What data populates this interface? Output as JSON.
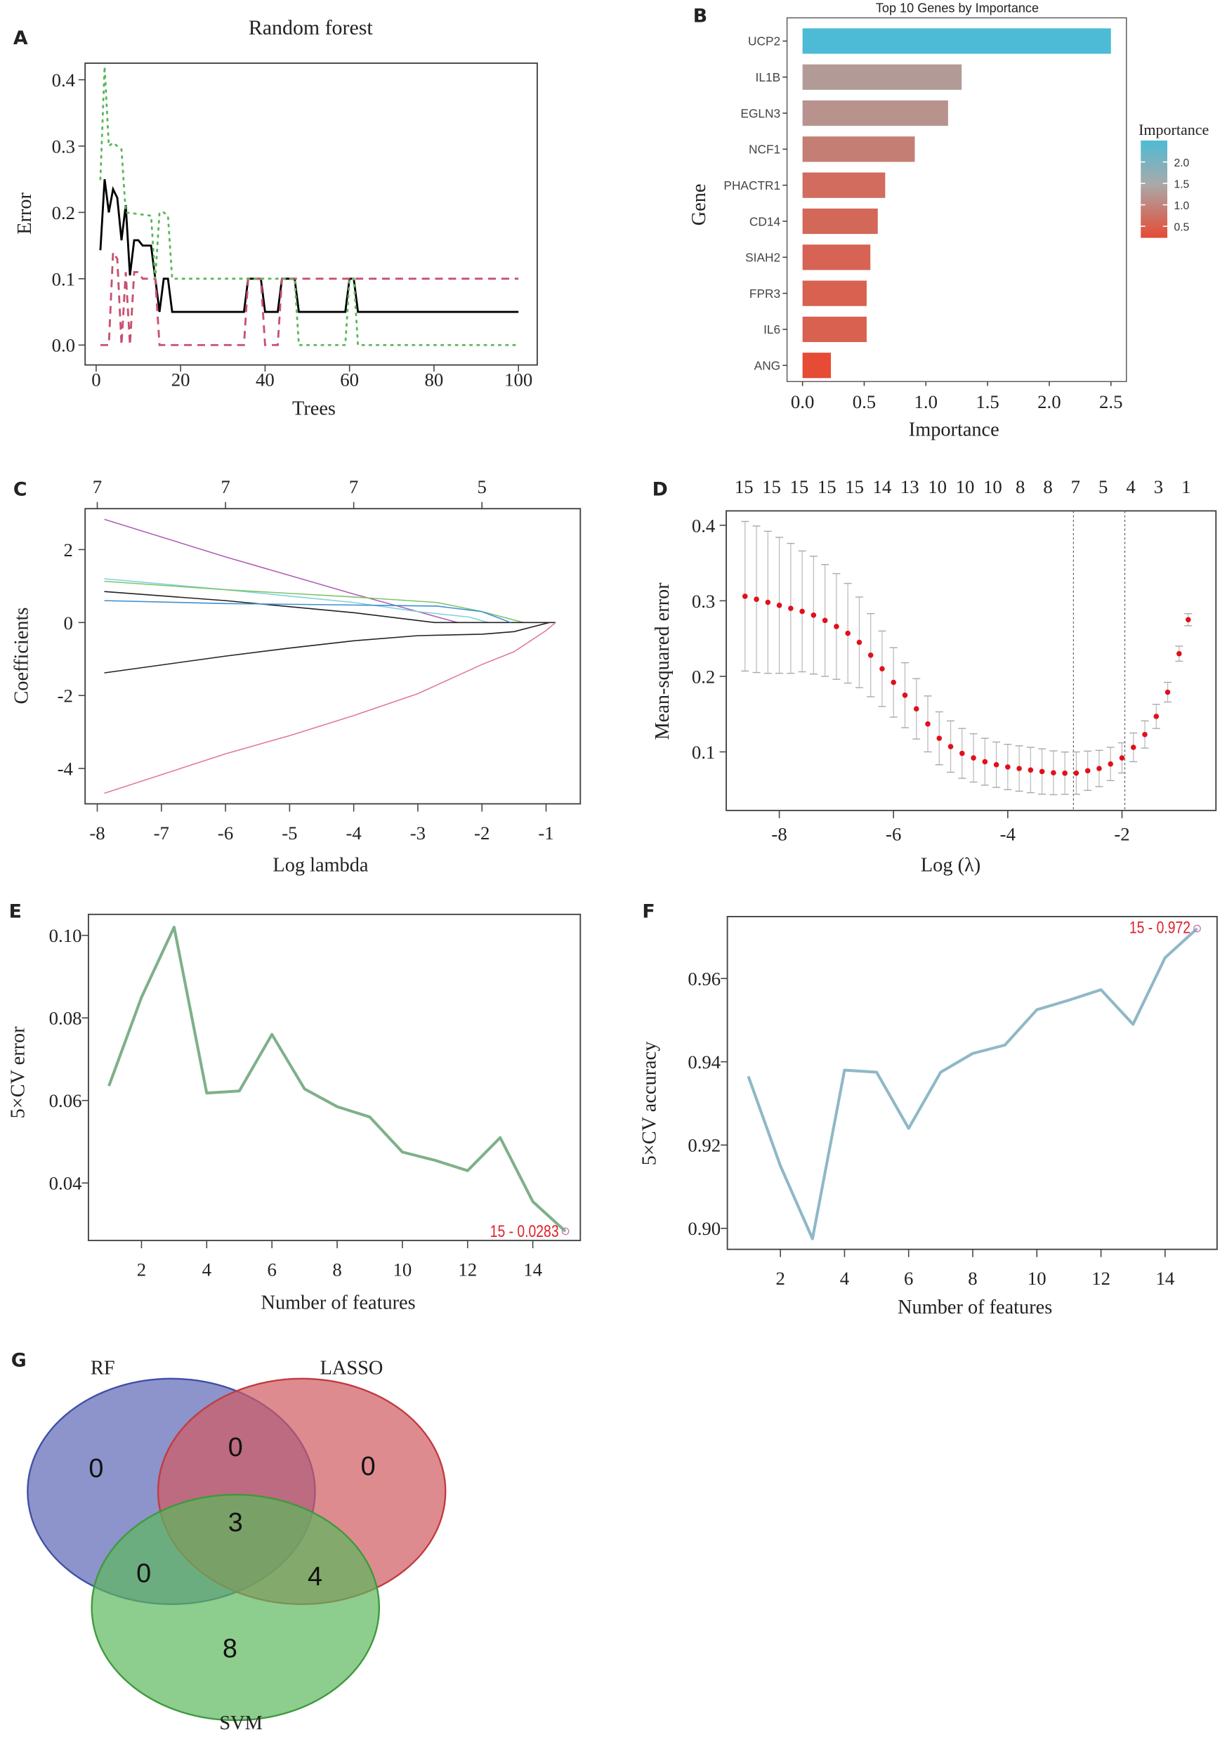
{
  "panels": {
    "A": "A",
    "B": "B",
    "C": "C",
    "D": "D",
    "E": "E",
    "F": "F",
    "G": "G"
  },
  "chart_data": [
    {
      "panel": "A",
      "type": "line",
      "title": "Random forest",
      "xlabel": "Trees",
      "ylabel": "Error",
      "xlim": [
        0,
        100
      ],
      "ylim": [
        0,
        0.43
      ],
      "xticks": [
        0,
        20,
        40,
        60,
        80,
        100
      ],
      "yticks": [
        "0.0",
        "0.1",
        "0.2",
        "0.3",
        "0.4"
      ],
      "series": [
        {
          "style": "solid",
          "color": "#000000",
          "points": [
            [
              1,
              0.143
            ],
            [
              2,
              0.25
            ],
            [
              3,
              0.2
            ],
            [
              4,
              0.235
            ],
            [
              5,
              0.222
            ],
            [
              6,
              0.158
            ],
            [
              7,
              0.211
            ],
            [
              8,
              0.105
            ],
            [
              9,
              0.158
            ],
            [
              10,
              0.158
            ],
            [
              11,
              0.15
            ],
            [
              13,
              0.15
            ],
            [
              15,
              0.05
            ],
            [
              16,
              0.1
            ],
            [
              17,
              0.1
            ],
            [
              18,
              0.05
            ],
            [
              35,
              0.05
            ],
            [
              36,
              0.1
            ],
            [
              39,
              0.1
            ],
            [
              40,
              0.05
            ],
            [
              43,
              0.05
            ],
            [
              44,
              0.1
            ],
            [
              47,
              0.1
            ],
            [
              48,
              0.05
            ],
            [
              59,
              0.05
            ],
            [
              60,
              0.1
            ],
            [
              61,
              0.1
            ],
            [
              62,
              0.05
            ],
            [
              100,
              0.05
            ]
          ]
        },
        {
          "style": "dashed",
          "color": "#c8506e",
          "points": [
            [
              1,
              0
            ],
            [
              3,
              0
            ],
            [
              4,
              0.14
            ],
            [
              5,
              0.13
            ],
            [
              6,
              0
            ],
            [
              7,
              0.11
            ],
            [
              8,
              0
            ],
            [
              9,
              0.11
            ],
            [
              10,
              0.11
            ],
            [
              11,
              0.1
            ],
            [
              14,
              0.1
            ],
            [
              15,
              0
            ],
            [
              35,
              0
            ],
            [
              36,
              0.1
            ],
            [
              39,
              0.1
            ],
            [
              40,
              0
            ],
            [
              43,
              0
            ],
            [
              44,
              0.1
            ],
            [
              100,
              0.1
            ]
          ]
        },
        {
          "style": "dotted",
          "color": "#5cb85c",
          "points": [
            [
              1,
              0.25
            ],
            [
              2,
              0.42
            ],
            [
              3,
              0.3
            ],
            [
              4,
              0.305
            ],
            [
              6,
              0.295
            ],
            [
              7,
              0.2
            ],
            [
              13,
              0.195
            ],
            [
              14,
              0.1
            ],
            [
              15,
              0.2
            ],
            [
              16,
              0.2
            ],
            [
              17,
              0.195
            ],
            [
              18,
              0.1
            ],
            [
              47,
              0.1
            ],
            [
              48,
              0
            ],
            [
              59,
              0
            ],
            [
              60,
              0.1
            ],
            [
              61,
              0.1
            ],
            [
              62,
              0
            ],
            [
              100,
              0
            ]
          ]
        }
      ]
    },
    {
      "panel": "B",
      "type": "bar",
      "orientation": "horizontal",
      "title": "Top 10 Genes by Importance",
      "xlabel": "Importance",
      "ylabel": "Gene",
      "xlim": [
        0,
        2.6
      ],
      "xticks": [
        "0.0",
        "0.5",
        "1.0",
        "1.5",
        "2.0",
        "2.5"
      ],
      "categories": [
        "UCP2",
        "IL1B",
        "EGLN3",
        "NCF1",
        "PHACTR1",
        "CD14",
        "SIAH2",
        "FPR3",
        "IL6",
        "ANG"
      ],
      "values": [
        2.5,
        1.29,
        1.18,
        0.91,
        0.67,
        0.61,
        0.55,
        0.52,
        0.52,
        0.23
      ],
      "legend": {
        "title": "Importance",
        "ticks": [
          "2.0",
          "1.5",
          "1.0",
          "0.5"
        ],
        "position": "right",
        "low_color": "#e64b35",
        "mid_color": "#a9a9a9",
        "high_color": "#4dbbd5"
      }
    },
    {
      "panel": "C",
      "type": "line",
      "xlabel": "Log lambda",
      "ylabel": "Coefficients",
      "xlim": [
        -8.2,
        -0.6
      ],
      "ylim": [
        -4.96,
        3.13
      ],
      "xticks": [
        -8,
        -7,
        -6,
        -5,
        -4,
        -3,
        -2,
        -1
      ],
      "yticks": [
        2,
        0,
        -2,
        -4
      ],
      "top_ticks": {
        "at": [
          -8,
          -6,
          -4,
          -2
        ],
        "labels": [
          "7",
          "7",
          "7",
          "5"
        ]
      },
      "series": [
        {
          "color": "#b05fb5",
          "points": [
            [
              -7.89,
              2.83
            ],
            [
              -6,
              1.8
            ],
            [
              -4,
              0.78
            ],
            [
              -2.38,
              0
            ]
          ]
        },
        {
          "color": "#7fd0e0",
          "points": [
            [
              -7.89,
              1.2
            ],
            [
              -6,
              0.9
            ],
            [
              -4,
              0.55
            ],
            [
              -3,
              0.3
            ],
            [
              -2.2,
              0.15
            ],
            [
              -1.9,
              0
            ]
          ]
        },
        {
          "color": "#7cc46a",
          "points": [
            [
              -7.89,
              1.13
            ],
            [
              -6,
              0.9
            ],
            [
              -4,
              0.7
            ],
            [
              -2.7,
              0.55
            ],
            [
              -2,
              0.3
            ],
            [
              -1.35,
              0
            ]
          ]
        },
        {
          "color": "#222222",
          "points": [
            [
              -7.89,
              0.85
            ],
            [
              -6,
              0.6
            ],
            [
              -4,
              0.27
            ],
            [
              -2.74,
              0
            ],
            [
              -0.85,
              0
            ]
          ]
        },
        {
          "color": "#3e8fd0",
          "points": [
            [
              -7.89,
              0.6
            ],
            [
              -6,
              0.52
            ],
            [
              -4,
              0.48
            ],
            [
              -2.7,
              0.45
            ],
            [
              -2,
              0.3
            ],
            [
              -1.55,
              0
            ]
          ]
        },
        {
          "color": "#222222",
          "points": [
            [
              -7.89,
              -1.38
            ],
            [
              -6,
              -0.92
            ],
            [
              -5,
              -0.7
            ],
            [
              -4,
              -0.5
            ],
            [
              -3,
              -0.36
            ],
            [
              -2,
              -0.32
            ],
            [
              -1.5,
              -0.25
            ],
            [
              -0.95,
              0
            ]
          ]
        },
        {
          "color": "#e07a9a",
          "points": [
            [
              -7.89,
              -4.68
            ],
            [
              -6,
              -3.6
            ],
            [
              -5,
              -3.1
            ],
            [
              -4,
              -2.55
            ],
            [
              -3,
              -1.95
            ],
            [
              -2,
              -1.15
            ],
            [
              -1.5,
              -0.8
            ],
            [
              -1,
              -0.22
            ],
            [
              -0.85,
              0
            ]
          ]
        }
      ]
    },
    {
      "panel": "D",
      "type": "scatter",
      "xlabel": "Log (λ)",
      "ylabel": "Mean-squared error",
      "xlim": [
        -9.6,
        -0.5
      ],
      "ylim": [
        0.042,
        0.42
      ],
      "xticks": [
        -8,
        -6,
        -4,
        -2
      ],
      "yticks": [
        "0.1",
        "0.2",
        "0.3",
        "0.4"
      ],
      "top_labels": [
        "15",
        "15",
        "15",
        "15",
        "15",
        "14",
        "13",
        "10",
        "10",
        "10",
        "8",
        "8",
        "7",
        "5",
        "4",
        "3",
        "1"
      ],
      "vlines": [
        -2.85,
        -1.95
      ],
      "x": [
        -8.6,
        -8.4,
        -8.2,
        -8.0,
        -7.8,
        -7.6,
        -7.4,
        -7.2,
        -7.0,
        -6.8,
        -6.6,
        -6.4,
        -6.2,
        -6.0,
        -5.8,
        -5.6,
        -5.4,
        -5.2,
        -5.0,
        -4.8,
        -4.6,
        -4.4,
        -4.2,
        -4.0,
        -3.8,
        -3.6,
        -3.4,
        -3.2,
        -3.0,
        -2.8,
        -2.6,
        -2.4,
        -2.2,
        -2.0,
        -1.8,
        -1.6,
        -1.4,
        -1.2,
        -1.0,
        -0.84
      ],
      "mse": [
        0.306,
        0.302,
        0.298,
        0.294,
        0.29,
        0.286,
        0.281,
        0.274,
        0.266,
        0.257,
        0.245,
        0.228,
        0.21,
        0.192,
        0.175,
        0.157,
        0.137,
        0.118,
        0.107,
        0.098,
        0.092,
        0.087,
        0.083,
        0.08,
        0.078,
        0.076,
        0.074,
        0.0723,
        0.0718,
        0.0719,
        0.075,
        0.078,
        0.084,
        0.092,
        0.106,
        0.123,
        0.147,
        0.179,
        0.23,
        0.275
      ],
      "se": [
        0.099,
        0.097,
        0.094,
        0.09,
        0.086,
        0.08,
        0.078,
        0.074,
        0.07,
        0.066,
        0.06,
        0.055,
        0.05,
        0.046,
        0.043,
        0.04,
        0.037,
        0.035,
        0.034,
        0.033,
        0.032,
        0.031,
        0.03,
        0.03,
        0.03,
        0.03,
        0.03,
        0.029,
        0.028,
        0.028,
        0.026,
        0.024,
        0.022,
        0.02,
        0.019,
        0.018,
        0.016,
        0.013,
        0.01,
        0.008
      ]
    },
    {
      "panel": "E",
      "type": "line",
      "xlabel": "Number of features",
      "ylabel": "5×CV error",
      "xlim": [
        0.2,
        15.6
      ],
      "ylim": [
        0.0255,
        0.1055
      ],
      "xticks": [
        2,
        4,
        6,
        8,
        10,
        12,
        14
      ],
      "yticks": [
        "0.04",
        "0.06",
        "0.08",
        "0.10"
      ],
      "color": "#7fb08a",
      "x": [
        1,
        2,
        3,
        4,
        5,
        6,
        7,
        8,
        9,
        10,
        11,
        12,
        13,
        14,
        15
      ],
      "values": [
        0.0635,
        0.085,
        0.102,
        0.0618,
        0.0623,
        0.076,
        0.0628,
        0.0585,
        0.056,
        0.0475,
        0.0455,
        0.043,
        0.051,
        0.0355,
        0.0283
      ],
      "annotation": "15 - 0.0283"
    },
    {
      "panel": "F",
      "type": "line",
      "xlabel": "Number of features",
      "ylabel": "5×CV accuracy",
      "xlim": [
        0.4,
        15.6
      ],
      "ylim": [
        0.895,
        0.9745
      ],
      "xticks": [
        2,
        4,
        6,
        8,
        10,
        12,
        14
      ],
      "yticks": [
        "0.90",
        "0.92",
        "0.94",
        "0.96"
      ],
      "color": "#8fb8c6",
      "x": [
        1,
        2,
        3,
        4,
        5,
        6,
        7,
        8,
        9,
        10,
        11,
        12,
        13,
        14,
        15
      ],
      "values": [
        0.9365,
        0.915,
        0.8975,
        0.938,
        0.9375,
        0.924,
        0.9375,
        0.942,
        0.944,
        0.9525,
        0.9548,
        0.9573,
        0.949,
        0.965,
        0.972
      ],
      "annotation": "15 - 0.972"
    }
  ],
  "venn": {
    "sets": [
      {
        "name": "RF",
        "color": "#5b67b5"
      },
      {
        "name": "LASSO",
        "color": "#d05a5f"
      },
      {
        "name": "SVM",
        "color": "#5cb85c"
      }
    ],
    "counts": {
      "RF_only": "0",
      "RF_LASSO": "0",
      "LASSO_only": "0",
      "all": "3",
      "RF_SVM": "0",
      "LASSO_SVM": "4",
      "SVM_only": "8"
    }
  }
}
